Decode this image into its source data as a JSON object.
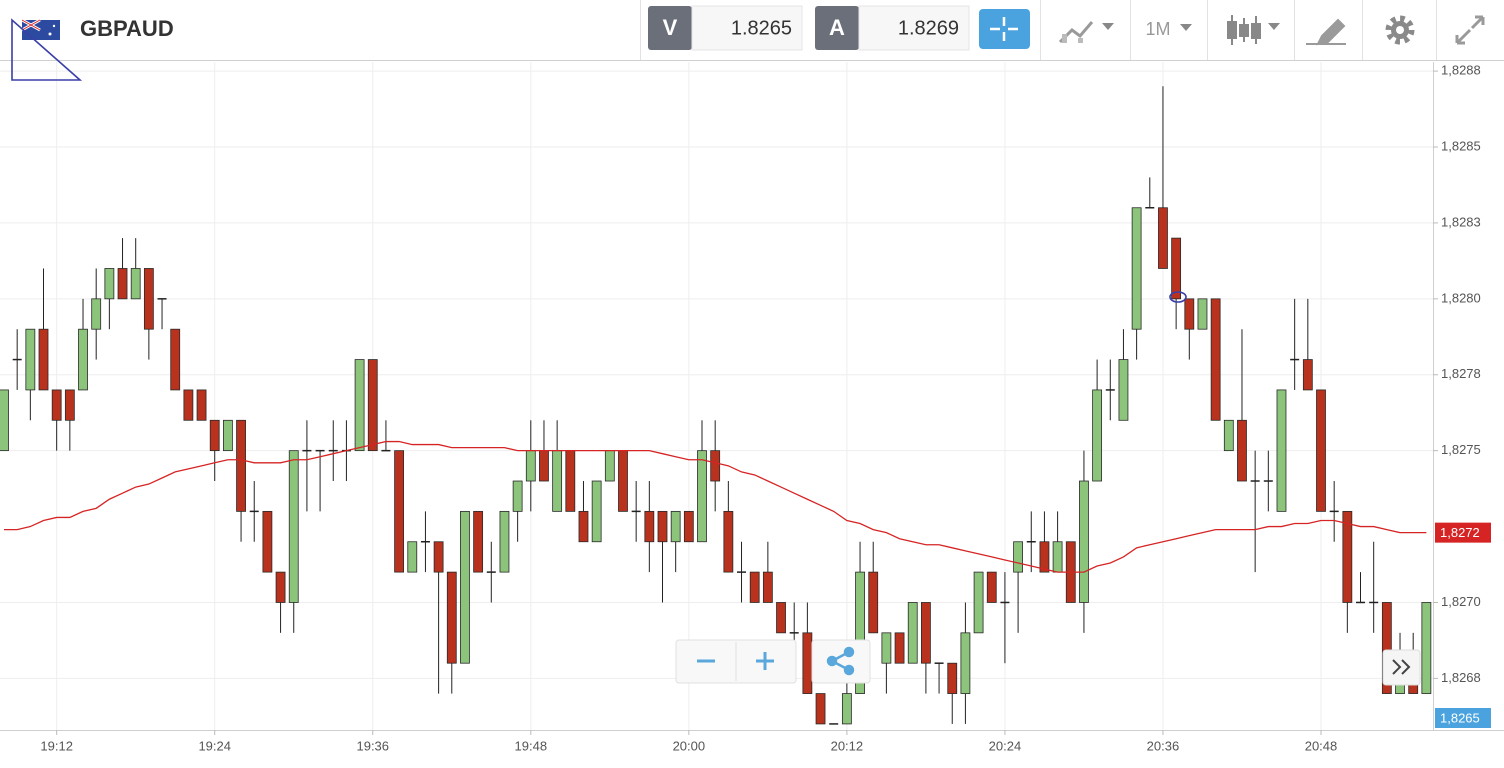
{
  "toolbar": {
    "symbol": "GBPAUD",
    "bid_label": "V",
    "bid": 1.8265,
    "ask_label": "A",
    "ask": 1.8269,
    "timeframe": "1M"
  },
  "chart_data": {
    "type": "candlestick",
    "categories": [
      null,
      null,
      null,
      null,
      "19:12",
      null,
      null,
      null,
      null,
      null,
      null,
      null,
      null,
      null,
      null,
      null,
      "19:24",
      null,
      null,
      null,
      null,
      null,
      null,
      null,
      null,
      null,
      null,
      null,
      "19:36",
      null,
      null,
      null,
      null,
      null,
      null,
      null,
      null,
      null,
      null,
      null,
      "19:48",
      null,
      null,
      null,
      null,
      null,
      null,
      null,
      null,
      null,
      null,
      null,
      "20:00",
      null,
      null,
      null,
      null,
      null,
      null,
      null,
      null,
      null,
      null,
      null,
      "20:12",
      null,
      null,
      null,
      null,
      null,
      null,
      null,
      null,
      null,
      null,
      null,
      "20:24",
      null,
      null,
      null,
      null,
      null,
      null,
      null,
      null,
      null,
      null,
      null,
      "20:36",
      null,
      null,
      null,
      null,
      null,
      null,
      null,
      null,
      null,
      null,
      null,
      "20:48",
      null,
      null,
      null,
      null,
      null,
      null,
      null,
      null
    ],
    "open": [
      1.8275,
      1.8278,
      1.8277,
      1.8279,
      1.8277,
      1.8277,
      1.8277,
      1.8279,
      1.828,
      1.8281,
      1.828,
      1.8281,
      1.828,
      1.8279,
      1.8277,
      1.8277,
      1.8276,
      1.8275,
      1.8276,
      1.8273,
      1.8273,
      1.8271,
      1.827,
      1.8275,
      1.8275,
      1.8275,
      1.8275,
      1.8275,
      1.8278,
      1.8275,
      1.8275,
      1.8271,
      1.8272,
      1.8272,
      1.8271,
      1.8268,
      1.8273,
      1.8271,
      1.8271,
      1.8273,
      1.8274,
      1.8275,
      1.8273,
      1.8275,
      1.8273,
      1.8272,
      1.8274,
      1.8275,
      1.8273,
      1.8273,
      1.8273,
      1.8272,
      1.8273,
      1.8272,
      1.8275,
      1.8273,
      1.8271,
      1.8271,
      1.8271,
      1.827,
      1.8269,
      1.8269,
      1.8267,
      1.8266,
      1.8266,
      1.8267,
      1.8271,
      1.8268,
      1.8269,
      1.8268,
      1.827,
      1.8268,
      1.8268,
      1.8267,
      1.8269,
      1.8271,
      1.827,
      1.8271,
      1.8272,
      1.8272,
      1.8271,
      1.8272,
      1.827,
      1.8274,
      1.8277,
      1.8276,
      1.8279,
      1.8283,
      1.8283,
      1.8282,
      1.828,
      1.8279,
      1.828,
      1.8275,
      1.8276,
      1.8274,
      1.8274,
      1.8273,
      1.8278,
      1.8278,
      1.8277,
      1.8273,
      1.8273,
      1.827,
      1.827,
      1.827,
      1.8267,
      1.8268,
      1.8267
    ],
    "high": [
      1.8277,
      1.8279,
      1.8279,
      1.8281,
      1.8277,
      1.8277,
      1.828,
      1.8281,
      1.8281,
      1.8282,
      1.8282,
      1.8281,
      1.828,
      1.8279,
      1.8277,
      1.8277,
      1.8276,
      1.8276,
      1.8276,
      1.8274,
      1.8273,
      1.8271,
      1.8275,
      1.8276,
      1.8275,
      1.8276,
      1.8276,
      1.8278,
      1.8278,
      1.8276,
      1.8275,
      1.8272,
      1.8273,
      1.8272,
      1.8271,
      1.8273,
      1.8273,
      1.8272,
      1.8273,
      1.8274,
      1.8276,
      1.8276,
      1.8276,
      1.8275,
      1.8274,
      1.8274,
      1.8275,
      1.8275,
      1.8274,
      1.8274,
      1.8273,
      1.8273,
      1.8273,
      1.8276,
      1.8276,
      1.8274,
      1.8272,
      1.8271,
      1.8272,
      1.827,
      1.827,
      1.827,
      1.8267,
      1.8266,
      1.8268,
      1.8272,
      1.8272,
      1.8269,
      1.8269,
      1.827,
      1.827,
      1.8268,
      1.8268,
      1.827,
      1.8271,
      1.8271,
      1.8271,
      1.8272,
      1.8273,
      1.8273,
      1.8273,
      1.8272,
      1.8275,
      1.8278,
      1.8278,
      1.8279,
      1.8283,
      1.8284,
      1.8287,
      1.8282,
      1.828,
      1.828,
      1.828,
      1.8276,
      1.8279,
      1.8275,
      1.8275,
      1.8277,
      1.828,
      1.828,
      1.8277,
      1.8274,
      1.8273,
      1.8271,
      1.8272,
      1.827,
      1.8269,
      1.8269,
      1.827
    ],
    "low": [
      1.8275,
      1.8277,
      1.8276,
      1.8277,
      1.8275,
      1.8275,
      1.8277,
      1.8278,
      1.8279,
      1.828,
      1.828,
      1.8278,
      1.8279,
      1.8277,
      1.8276,
      1.8276,
      1.8274,
      1.8275,
      1.8272,
      1.8272,
      1.8271,
      1.8269,
      1.8269,
      1.8273,
      1.8273,
      1.8274,
      1.8274,
      1.8275,
      1.8275,
      1.8275,
      1.8271,
      1.8271,
      1.8271,
      1.8267,
      1.8267,
      1.8268,
      1.8271,
      1.827,
      1.8271,
      1.8272,
      1.8273,
      1.8274,
      1.8273,
      1.8273,
      1.8272,
      1.8272,
      1.8274,
      1.8273,
      1.8272,
      1.8271,
      1.827,
      1.8271,
      1.8272,
      1.8272,
      1.8273,
      1.8271,
      1.827,
      1.827,
      1.827,
      1.8269,
      1.8268,
      1.8267,
      1.8266,
      1.8266,
      1.8266,
      1.8267,
      1.8269,
      1.8267,
      1.8268,
      1.8268,
      1.8267,
      1.8267,
      1.8266,
      1.8266,
      1.8269,
      1.827,
      1.8268,
      1.8269,
      1.8271,
      1.8271,
      1.8271,
      1.827,
      1.8269,
      1.8274,
      1.8276,
      1.8276,
      1.8278,
      1.8283,
      1.8281,
      1.8279,
      1.8278,
      1.8279,
      1.8276,
      1.8275,
      1.8274,
      1.8271,
      1.8273,
      1.8273,
      1.8277,
      1.8277,
      1.8273,
      1.8272,
      1.8269,
      1.827,
      1.8269,
      1.8267,
      1.8267,
      1.8267,
      1.8267
    ],
    "close": [
      1.8277,
      1.8278,
      1.8279,
      1.8277,
      1.8276,
      1.8276,
      1.8279,
      1.828,
      1.8281,
      1.828,
      1.8281,
      1.8279,
      1.828,
      1.8277,
      1.8276,
      1.8276,
      1.8275,
      1.8276,
      1.8273,
      1.8273,
      1.8271,
      1.827,
      1.8275,
      1.8275,
      1.8275,
      1.8275,
      1.8275,
      1.8278,
      1.8275,
      1.8275,
      1.8271,
      1.8272,
      1.8272,
      1.8271,
      1.8268,
      1.8273,
      1.8271,
      1.8271,
      1.8273,
      1.8274,
      1.8275,
      1.8274,
      1.8275,
      1.8273,
      1.8272,
      1.8274,
      1.8275,
      1.8273,
      1.8273,
      1.8272,
      1.8272,
      1.8273,
      1.8272,
      1.8275,
      1.8274,
      1.8271,
      1.8271,
      1.827,
      1.827,
      1.8269,
      1.8269,
      1.8267,
      1.8266,
      1.8266,
      1.8267,
      1.8271,
      1.8269,
      1.8269,
      1.8268,
      1.827,
      1.8268,
      1.8268,
      1.8267,
      1.8269,
      1.8271,
      1.827,
      1.827,
      1.8272,
      1.8272,
      1.8271,
      1.8272,
      1.827,
      1.8274,
      1.8277,
      1.8277,
      1.8278,
      1.8283,
      1.8283,
      1.8281,
      1.828,
      1.8279,
      1.828,
      1.8276,
      1.8276,
      1.8274,
      1.8274,
      1.8274,
      1.8277,
      1.8278,
      1.8277,
      1.8273,
      1.8273,
      1.827,
      1.827,
      1.827,
      1.8267,
      1.8268,
      1.8267,
      1.827
    ],
    "up_color": "#8cc47c",
    "down_color": "#b8321d",
    "doji_color": "#222222",
    "overlay": {
      "color": "#d62424",
      "label": "1,8272",
      "values": [
        1.82724,
        1.82724,
        1.82725,
        1.82727,
        1.82728,
        1.82728,
        1.8273,
        1.82731,
        1.82734,
        1.82736,
        1.82738,
        1.82739,
        1.82741,
        1.82743,
        1.82744,
        1.82745,
        1.82746,
        1.82747,
        1.82747,
        1.82746,
        1.82746,
        1.82746,
        1.82747,
        1.82747,
        1.82748,
        1.82749,
        1.8275,
        1.82751,
        1.82752,
        1.82753,
        1.82753,
        1.82752,
        1.82752,
        1.82752,
        1.82751,
        1.82751,
        1.82751,
        1.82751,
        1.82751,
        1.8275,
        1.8275,
        1.8275,
        1.8275,
        1.8275,
        1.8275,
        1.8275,
        1.8275,
        1.8275,
        1.8275,
        1.8275,
        1.82749,
        1.82748,
        1.82747,
        1.82747,
        1.82746,
        1.82745,
        1.82743,
        1.82742,
        1.8274,
        1.82738,
        1.82736,
        1.82734,
        1.82732,
        1.8273,
        1.82727,
        1.82726,
        1.82724,
        1.82723,
        1.82721,
        1.8272,
        1.82719,
        1.82719,
        1.82718,
        1.82717,
        1.82716,
        1.82715,
        1.82714,
        1.82713,
        1.82712,
        1.82711,
        1.8271,
        1.8271,
        1.8271,
        1.82712,
        1.82713,
        1.82715,
        1.82718,
        1.82719,
        1.8272,
        1.82721,
        1.82722,
        1.82723,
        1.82724,
        1.82724,
        1.82724,
        1.82724,
        1.82725,
        1.82725,
        1.82726,
        1.82726,
        1.82727,
        1.82727,
        1.82726,
        1.82725,
        1.82725,
        1.82724,
        1.82723,
        1.82723,
        1.82723
      ]
    },
    "last_price": {
      "value": 1.8265,
      "label": "1,8265"
    },
    "ylim": [
      1.82658,
      1.82878
    ],
    "yticks": [
      {
        "value": 1.82875,
        "label": "1,8288"
      },
      {
        "value": 1.8285,
        "label": "1,8285"
      },
      {
        "value": 1.82825,
        "label": "1,8283"
      },
      {
        "value": 1.828,
        "label": "1,8280"
      },
      {
        "value": 1.82775,
        "label": "1,8278"
      },
      {
        "value": 1.8275,
        "label": "1,8275"
      },
      {
        "value": 1.827,
        "label": "1,8270"
      },
      {
        "value": 1.82675,
        "label": "1,8268"
      }
    ],
    "grid": true
  }
}
